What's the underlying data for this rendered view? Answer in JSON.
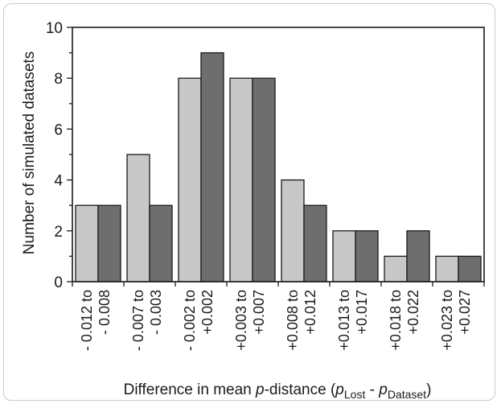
{
  "chart_data": {
    "type": "bar",
    "title": "",
    "ylabel": "Number of simulated datasets",
    "xlabel": {
      "prefix": "Difference in mean ",
      "italic": "p",
      "middle": "-distance (",
      "p1": "p",
      "sub1": "Lost",
      "sep": " - ",
      "p2": "p",
      "sub2": "Dataset",
      "suffix": ")"
    },
    "categories": [
      [
        "- 0.012 to",
        "- 0.008"
      ],
      [
        "- 0.007 to",
        "- 0.003"
      ],
      [
        "- 0.002 to",
        "+0.002"
      ],
      [
        "+0.003 to",
        "+0.007"
      ],
      [
        "+0.008 to",
        "+0.012"
      ],
      [
        "+0.013 to",
        "+0.017"
      ],
      [
        "+0.018 to",
        "+0.022"
      ],
      [
        "+0.023 to",
        "+0.027"
      ]
    ],
    "series": [
      {
        "values": [
          3,
          5,
          8,
          8,
          4,
          2,
          1,
          1
        ],
        "color": "#c8c8c8"
      },
      {
        "values": [
          3,
          3,
          9,
          8,
          3,
          2,
          2,
          1
        ],
        "color": "#6e6e6e"
      }
    ],
    "ylim": [
      0,
      10
    ],
    "yticks": [
      0,
      2,
      4,
      6,
      8,
      10
    ],
    "grid": false,
    "legend": "none"
  }
}
